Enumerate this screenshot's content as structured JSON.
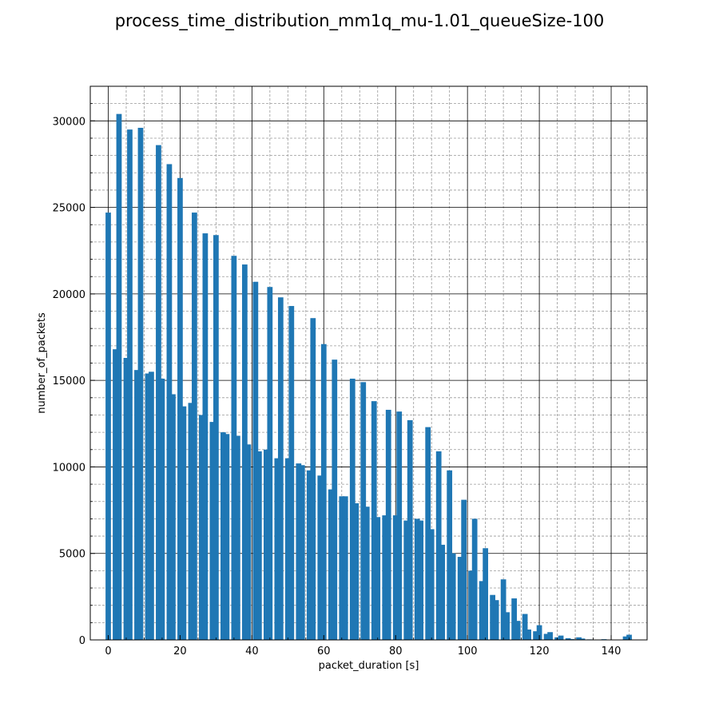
{
  "chart_data": {
    "type": "bar",
    "title": "process_time_distribution_mm1q_mu-1.01_queueSize-100",
    "xlabel": "packet_duration [s]",
    "ylabel": "number_of_packets",
    "xlim": [
      -5,
      150
    ],
    "ylim": [
      0,
      32000
    ],
    "xticks": [
      0,
      20,
      40,
      60,
      80,
      100,
      120,
      140
    ],
    "yticks": [
      0,
      5000,
      10000,
      15000,
      20000,
      25000,
      30000
    ],
    "grid": "major and minor",
    "bar_color": "#1f77b4",
    "bar_width": 1.5,
    "x": [
      0,
      2,
      3,
      5,
      6,
      8,
      9,
      11,
      12,
      14,
      15,
      17,
      18,
      20,
      21,
      23,
      24,
      26,
      27,
      29,
      30,
      32,
      33,
      35,
      36,
      38,
      39,
      41,
      42,
      44,
      45,
      47,
      48,
      50,
      51,
      53,
      54,
      56,
      57,
      59,
      60,
      62,
      63,
      65,
      66,
      68,
      69,
      71,
      72,
      74,
      75,
      77,
      78,
      80,
      81,
      83,
      84,
      86,
      87,
      89,
      90,
      92,
      93,
      95,
      96,
      98,
      99,
      101,
      102,
      104,
      105,
      107,
      108,
      110,
      111,
      113,
      114,
      116,
      117,
      119,
      120,
      122,
      123,
      125,
      126,
      128,
      129,
      131,
      132,
      134,
      135,
      137,
      138,
      140,
      141,
      143,
      144,
      145
    ],
    "values": [
      24700,
      16800,
      30400,
      16300,
      29500,
      15600,
      29600,
      15400,
      15500,
      28600,
      15100,
      27500,
      14200,
      26700,
      13500,
      13700,
      24700,
      13000,
      23500,
      12600,
      23400,
      12000,
      11900,
      22200,
      11800,
      21700,
      11300,
      20700,
      10900,
      11000,
      20400,
      10500,
      19800,
      10500,
      19300,
      10200,
      10100,
      9800,
      18600,
      9500,
      17100,
      8700,
      16200,
      8300,
      8300,
      15100,
      7900,
      14900,
      7700,
      13800,
      7100,
      7200,
      13300,
      7200,
      13200,
      6900,
      12700,
      7000,
      6900,
      12300,
      6400,
      10900,
      5500,
      9800,
      5000,
      4800,
      8100,
      4000,
      7000,
      3400,
      5300,
      2600,
      2300,
      3500,
      1600,
      2400,
      1100,
      1500,
      600,
      500,
      850,
      350,
      450,
      150,
      250,
      100,
      50,
      150,
      80,
      30,
      20,
      10,
      40,
      15,
      10,
      20,
      200,
      300
    ]
  }
}
